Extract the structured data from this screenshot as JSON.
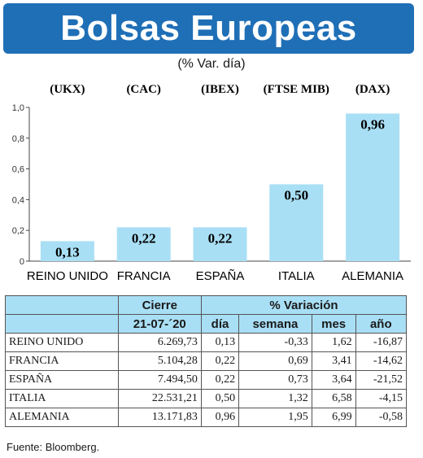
{
  "title": "Bolsas Europeas",
  "subtitle": "(% Var. día)",
  "chart_data": {
    "type": "bar",
    "codes": [
      "(UKX)",
      "(CAC)",
      "(IBEX)",
      "(FTSE MIB)",
      "(DAX)"
    ],
    "categories": [
      "REINO UNIDO",
      "FRANCIA",
      "ESPAÑA",
      "ITALIA",
      "ALEMANIA"
    ],
    "values": [
      0.13,
      0.22,
      0.22,
      0.5,
      0.96
    ],
    "value_labels": [
      "0,13",
      "0,22",
      "0,22",
      "0,50",
      "0,96"
    ],
    "yticks": [
      "0",
      "0,2",
      "0,4",
      "0,6",
      "0,8",
      "1,0"
    ],
    "ylim": [
      0,
      1.0
    ],
    "bar_color": "#a9dff5",
    "grid": false
  },
  "table": {
    "header_cierre": "Cierre",
    "header_variacion": "% Variación",
    "date": "21-07-´20",
    "columns": [
      "día",
      "semana",
      "mes",
      "año"
    ],
    "rows": [
      {
        "name": "REINO UNIDO",
        "cierre": "6.269,73",
        "dia": "0,13",
        "semana": "-0,33",
        "mes": "1,62",
        "anio": "-16,87"
      },
      {
        "name": "FRANCIA",
        "cierre": "5.104,28",
        "dia": "0,22",
        "semana": "0,69",
        "mes": "3,41",
        "anio": "-14,62"
      },
      {
        "name": "ESPAÑA",
        "cierre": "7.494,50",
        "dia": "0,22",
        "semana": "0,73",
        "mes": "3,64",
        "anio": "-21,52"
      },
      {
        "name": "ITALIA",
        "cierre": "22.531,21",
        "dia": "0,50",
        "semana": "1,32",
        "mes": "6,58",
        "anio": "-4,15"
      },
      {
        "name": "ALEMANIA",
        "cierre": "13.171,83",
        "dia": "0,96",
        "semana": "1,95",
        "mes": "6,99",
        "anio": "-0,58"
      }
    ]
  },
  "source": "Fuente: Bloomberg.",
  "colors": {
    "banner": "#1f6fb7",
    "header_fill": "#a9dff5"
  }
}
